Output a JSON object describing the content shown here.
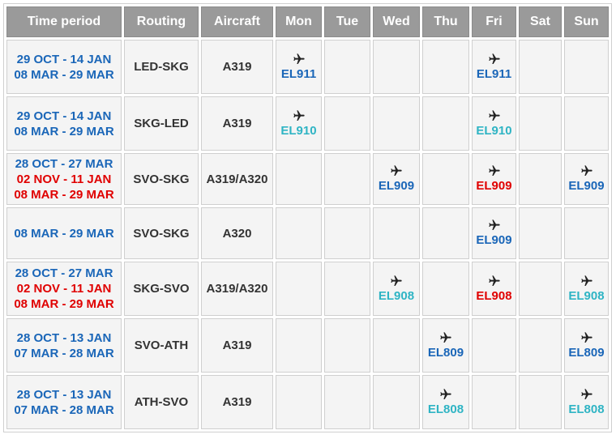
{
  "headers": {
    "time_period": "Time period",
    "routing": "Routing",
    "aircraft": "Aircraft",
    "days": [
      "Mon",
      "Tue",
      "Wed",
      "Thu",
      "Fri",
      "Sat",
      "Sun"
    ]
  },
  "colors": {
    "blue": "#1a66b8",
    "teal": "#2fb4c4",
    "red": "#e00000",
    "header_bg": "#9a9a9a"
  },
  "icon": "airplane-icon",
  "rows": [
    {
      "periods": [
        {
          "text": "29 OCT - 14 JAN",
          "color": "blue"
        },
        {
          "text": "08 MAR - 29 MAR",
          "color": "blue"
        }
      ],
      "routing": {
        "text": "LED-SKG",
        "color": "blue"
      },
      "aircraft": "A319",
      "flights": {
        "Mon": {
          "num": "EL911",
          "color": "blue"
        },
        "Fri": {
          "num": "EL911",
          "color": "blue"
        }
      }
    },
    {
      "periods": [
        {
          "text": "29 OCT - 14 JAN",
          "color": "blue"
        },
        {
          "text": "08 MAR - 29 MAR",
          "color": "blue"
        }
      ],
      "routing": {
        "text": "SKG-LED",
        "color": "teal"
      },
      "aircraft": "A319",
      "flights": {
        "Mon": {
          "num": "EL910",
          "color": "teal"
        },
        "Fri": {
          "num": "EL910",
          "color": "teal"
        }
      }
    },
    {
      "periods": [
        {
          "text": "28 OCT - 27 MAR",
          "color": "blue"
        },
        {
          "text": "02 NOV - 11 JAN",
          "color": "red"
        },
        {
          "text": "08 MAR - 29 MAR",
          "color": "red"
        }
      ],
      "routing": {
        "text": "SVO-SKG",
        "color": "blue"
      },
      "aircraft": "A319/A320",
      "flights": {
        "Wed": {
          "num": "EL909",
          "color": "blue"
        },
        "Fri": {
          "num": "EL909",
          "color": "red"
        },
        "Sun": {
          "num": "EL909",
          "color": "blue"
        }
      }
    },
    {
      "periods": [
        {
          "text": "08 MAR - 29 MAR",
          "color": "blue"
        }
      ],
      "routing": {
        "text": "SVO-SKG",
        "color": "blue"
      },
      "aircraft": "A320",
      "flights": {
        "Fri": {
          "num": "EL909",
          "color": "blue"
        }
      }
    },
    {
      "periods": [
        {
          "text": "28 OCT - 27 MAR",
          "color": "blue"
        },
        {
          "text": "02 NOV - 11 JAN",
          "color": "red"
        },
        {
          "text": "08 MAR - 29 MAR",
          "color": "red"
        }
      ],
      "routing": {
        "text": "SKG-SVO",
        "color": "teal"
      },
      "aircraft": "A319/A320",
      "flights": {
        "Wed": {
          "num": "EL908",
          "color": "teal"
        },
        "Fri": {
          "num": "EL908",
          "color": "red"
        },
        "Sun": {
          "num": "EL908",
          "color": "teal"
        }
      }
    },
    {
      "periods": [
        {
          "text": "28 OCT - 13 JAN",
          "color": "blue"
        },
        {
          "text": "07 MAR - 28 MAR",
          "color": "blue"
        }
      ],
      "routing": {
        "text": "SVO-ATH",
        "color": "blue"
      },
      "aircraft": "A319",
      "flights": {
        "Thu": {
          "num": "EL809",
          "color": "blue"
        },
        "Sun": {
          "num": "EL809",
          "color": "blue"
        }
      }
    },
    {
      "periods": [
        {
          "text": "28 OCT - 13 JAN",
          "color": "blue"
        },
        {
          "text": "07 MAR - 28 MAR",
          "color": "blue"
        }
      ],
      "routing": {
        "text": "ATH-SVO",
        "color": "teal"
      },
      "aircraft": "A319",
      "flights": {
        "Thu": {
          "num": "EL808",
          "color": "teal"
        },
        "Sun": {
          "num": "EL808",
          "color": "teal"
        }
      }
    }
  ]
}
